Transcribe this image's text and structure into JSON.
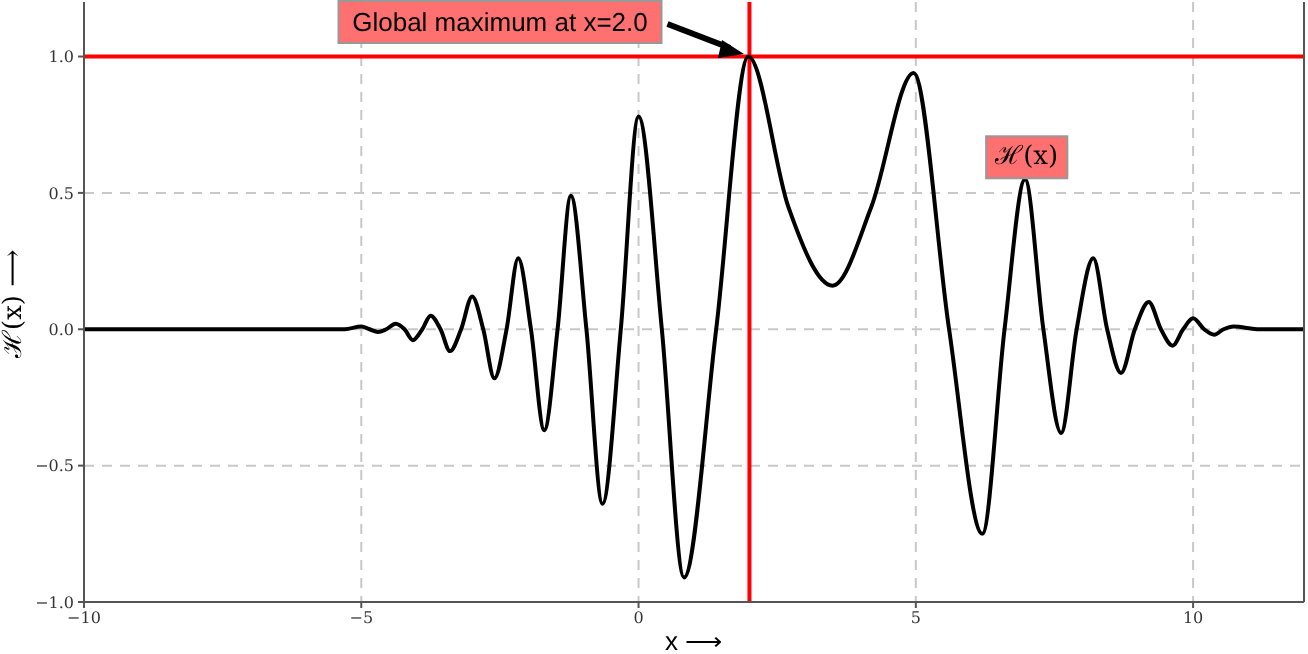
{
  "chart_data": {
    "type": "line",
    "xlabel": "x ⟶",
    "ylabel": "ℋ(x) ⟶",
    "xlim": [
      -10,
      12
    ],
    "ylim": [
      -1,
      1.2
    ],
    "xticks": [
      {
        "value": -10,
        "label": "−10"
      },
      {
        "value": -5,
        "label": "−5"
      },
      0,
      5,
      10
    ],
    "yticks": [
      {
        "value": -1,
        "label": "−1.0"
      },
      {
        "value": -0.5,
        "label": "−0.5"
      },
      {
        "value": 0,
        "label": "0.0"
      },
      0.5,
      {
        "value": 1,
        "label": "1.0"
      }
    ],
    "grid": true,
    "marker": "none",
    "line_style": "solid",
    "series": [
      {
        "color": "#000000",
        "x": [
          -10,
          -6,
          -5.3,
          -5.0,
          -4.85,
          -4.7,
          -4.55,
          -4.38,
          -4.22,
          -4.07,
          -3.9,
          -3.75,
          -3.57,
          -3.4,
          -3.2,
          -3.0,
          -2.8,
          -2.6,
          -2.38,
          -2.17,
          -1.94,
          -1.7,
          -1.46,
          -1.22,
          -0.94,
          -0.65,
          -0.32,
          0.0,
          0.42,
          0.82,
          1.4,
          1.98,
          2.7,
          3.5,
          4.2,
          4.96,
          5.6,
          6.2,
          6.6,
          6.97,
          7.3,
          7.62,
          7.9,
          8.2,
          8.45,
          8.7,
          8.95,
          9.2,
          9.42,
          9.63,
          9.82,
          10.0,
          10.2,
          10.38,
          10.55,
          10.73,
          11.2,
          12
        ],
        "values": [
          0,
          0,
          0,
          0.01,
          0,
          -0.01,
          0,
          0.02,
          0,
          -0.04,
          0,
          0.05,
          0,
          -0.08,
          0,
          0.12,
          0,
          -0.18,
          0,
          0.26,
          0,
          -0.37,
          0,
          0.49,
          0,
          -0.64,
          0,
          0.78,
          0,
          -0.91,
          0,
          1.0,
          0.45,
          0.16,
          0.45,
          0.94,
          0,
          -0.75,
          0,
          0.55,
          0,
          -0.38,
          0,
          0.26,
          0,
          -0.16,
          0,
          0.1,
          0,
          -0.06,
          0,
          0.04,
          0,
          -0.02,
          0,
          0.01,
          0,
          0
        ]
      }
    ],
    "ref_lines": [
      {
        "axis": "x",
        "value": 2,
        "color": "#ff0000"
      },
      {
        "axis": "y",
        "value": 1,
        "color": "#ff0000"
      }
    ],
    "annotations": [
      "Global maximum at x=2.0",
      {
        "text": "ℋ(x)",
        "x": 7,
        "y": 0.55
      }
    ]
  }
}
